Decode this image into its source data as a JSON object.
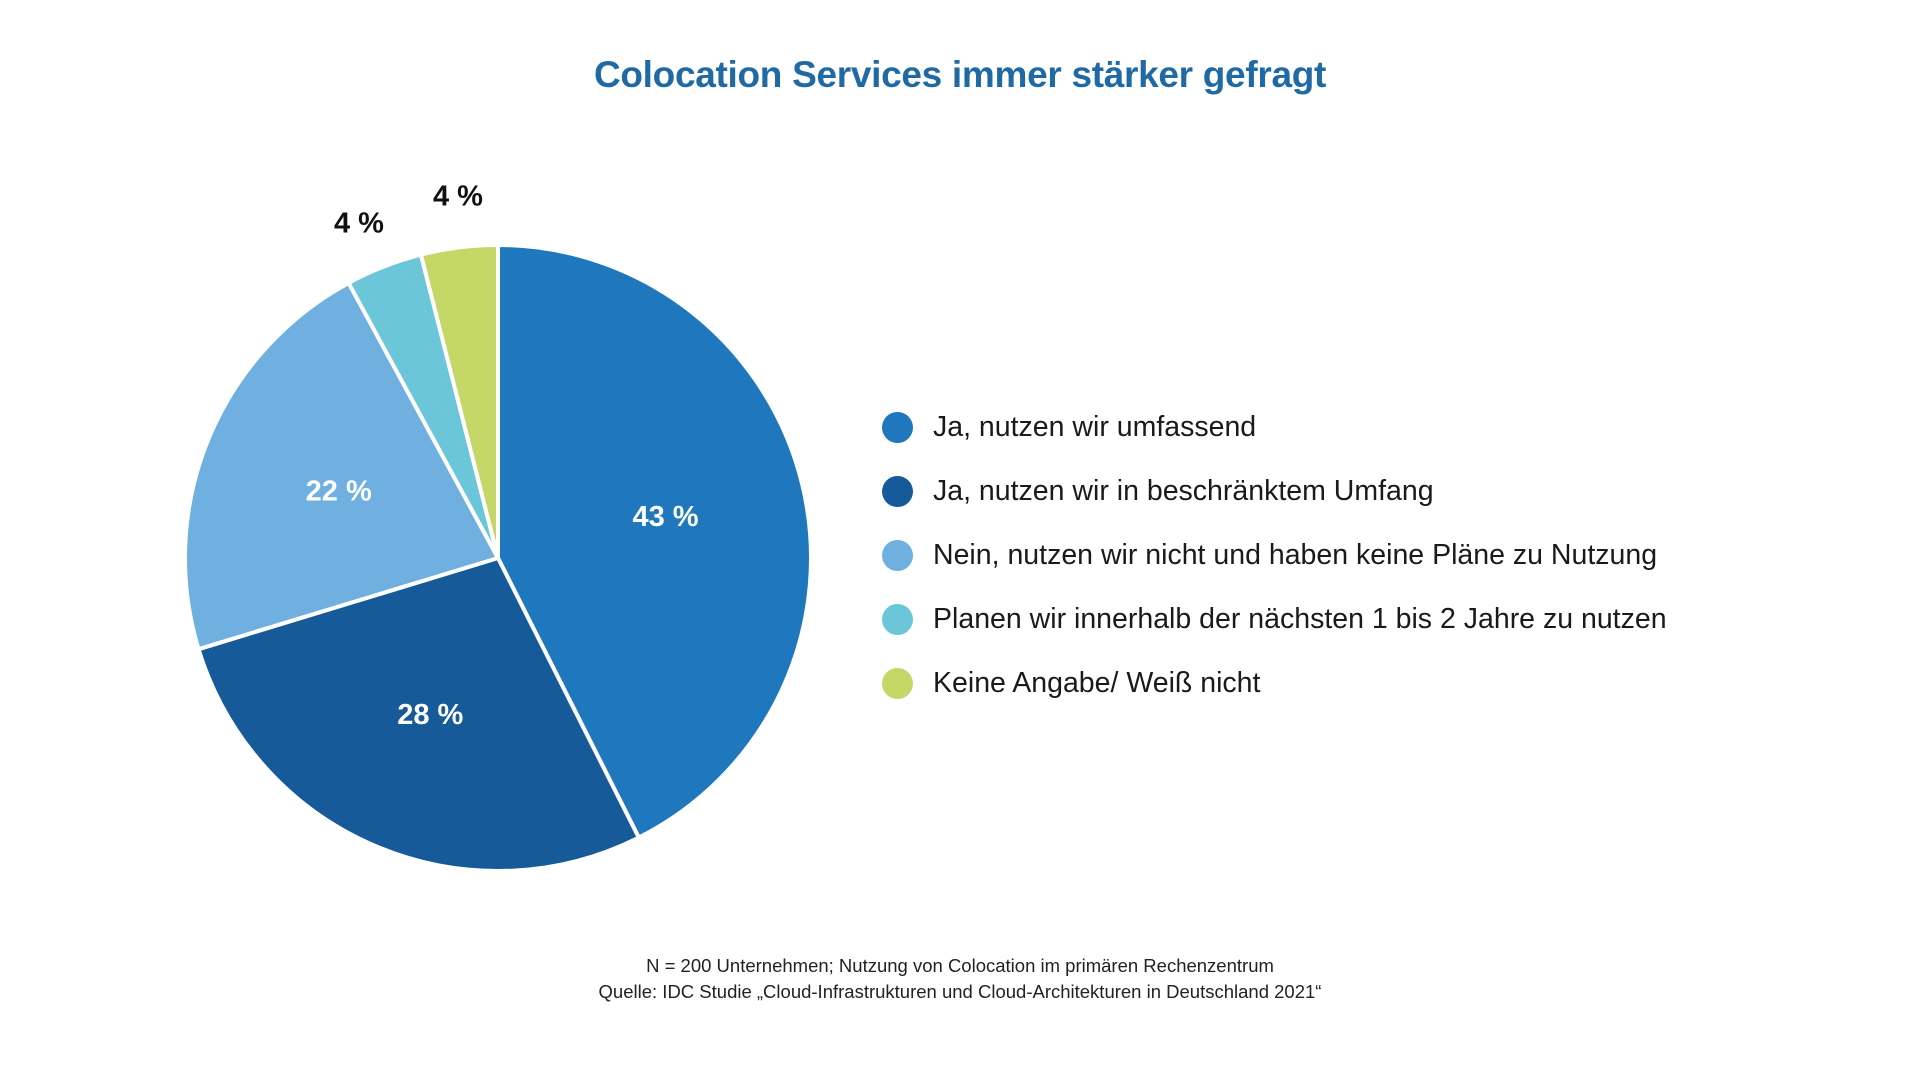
{
  "title": "Colocation Services immer stärker gefragt",
  "colors": {
    "title": "#1f6aa5",
    "slice_border": "#ffffff",
    "inside_label": "#ffffff",
    "outside_label": "#111111"
  },
  "chart_data": {
    "type": "pie",
    "title": "Colocation Services immer stärker gefragt",
    "legend_position": "right",
    "start_angle": "12 o'clock, clockwise",
    "slices": [
      {
        "label": "Ja, nutzen wir umfassend",
        "value": 43,
        "value_label": "43 %",
        "color": "#1f78bd",
        "label_position": "inside"
      },
      {
        "label": "Ja, nutzen wir in beschränktem Umfang",
        "value": 28,
        "value_label": "28 %",
        "color": "#165a99",
        "label_position": "inside"
      },
      {
        "label": "Nein, nutzen wir nicht und haben keine Pläne zu Nutzung",
        "value": 22,
        "value_label": "22 %",
        "color": "#6fb0e0",
        "label_position": "inside"
      },
      {
        "label": "Planen wir innerhalb der nächsten 1 bis 2 Jahre zu nutzen",
        "value": 4,
        "value_label": "4 %",
        "color": "#6cc6d9",
        "label_position": "outside"
      },
      {
        "label": "Keine Angabe/ Weiß nicht",
        "value": 4,
        "value_label": "4 %",
        "color": "#c4d767",
        "label_position": "outside"
      }
    ]
  },
  "footnote": {
    "line1": "N = 200 Unternehmen; Nutzung von Colocation im primären Rechenzentrum",
    "line2": "Quelle: IDC Studie „Cloud-Infrastrukturen und Cloud-Architekturen in Deutschland 2021“"
  }
}
